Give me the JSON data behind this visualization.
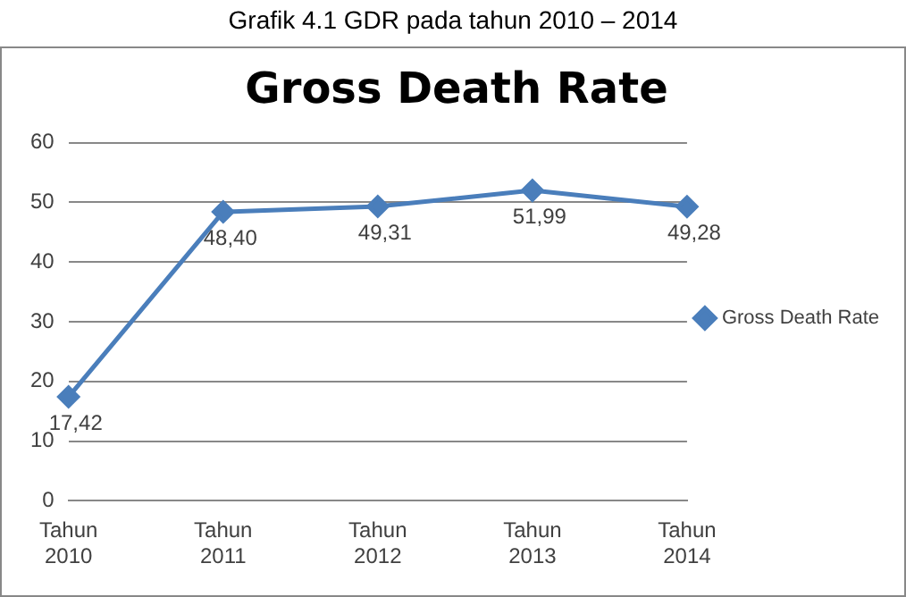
{
  "chart_data": {
    "type": "line",
    "subtitle": "Grafik 4.1 GDR pada tahun 2010 – 2014",
    "title": "Gross Death Rate",
    "categories": [
      "Tahun 2010",
      "Tahun 2011",
      "Tahun 2012",
      "Tahun 2013",
      "Tahun 2014"
    ],
    "series": [
      {
        "name": "Gross Death Rate",
        "color": "#4a7ebb",
        "values": [
          17.42,
          48.4,
          49.31,
          51.99,
          49.28
        ],
        "value_labels": [
          "17,42",
          "48,40",
          "49,31",
          "51,99",
          "49,28"
        ]
      }
    ],
    "ylim": [
      0,
      60
    ],
    "yticks": [
      0,
      10,
      20,
      30,
      40,
      50,
      60
    ],
    "grid": "y",
    "legend": "right",
    "marker": "diamond",
    "line_style": "solid"
  }
}
